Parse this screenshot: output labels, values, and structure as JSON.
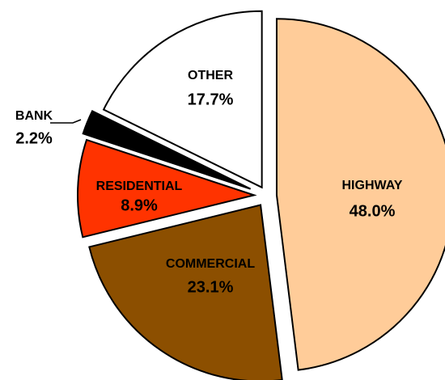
{
  "chart_data": {
    "type": "pie",
    "categories": [
      "HIGHWAY",
      "COMMERCIAL",
      "RESIDENTIAL",
      "BANK",
      "OTHER"
    ],
    "values": [
      48.0,
      23.1,
      8.9,
      2.2,
      17.7
    ],
    "value_labels": [
      "48.0%",
      "23.1%",
      "8.9%",
      "2.2%",
      "17.7%"
    ],
    "colors": [
      "#FFCC99",
      "#8C4F00",
      "#FF3300",
      "#000000",
      "#FFFFFF"
    ]
  }
}
